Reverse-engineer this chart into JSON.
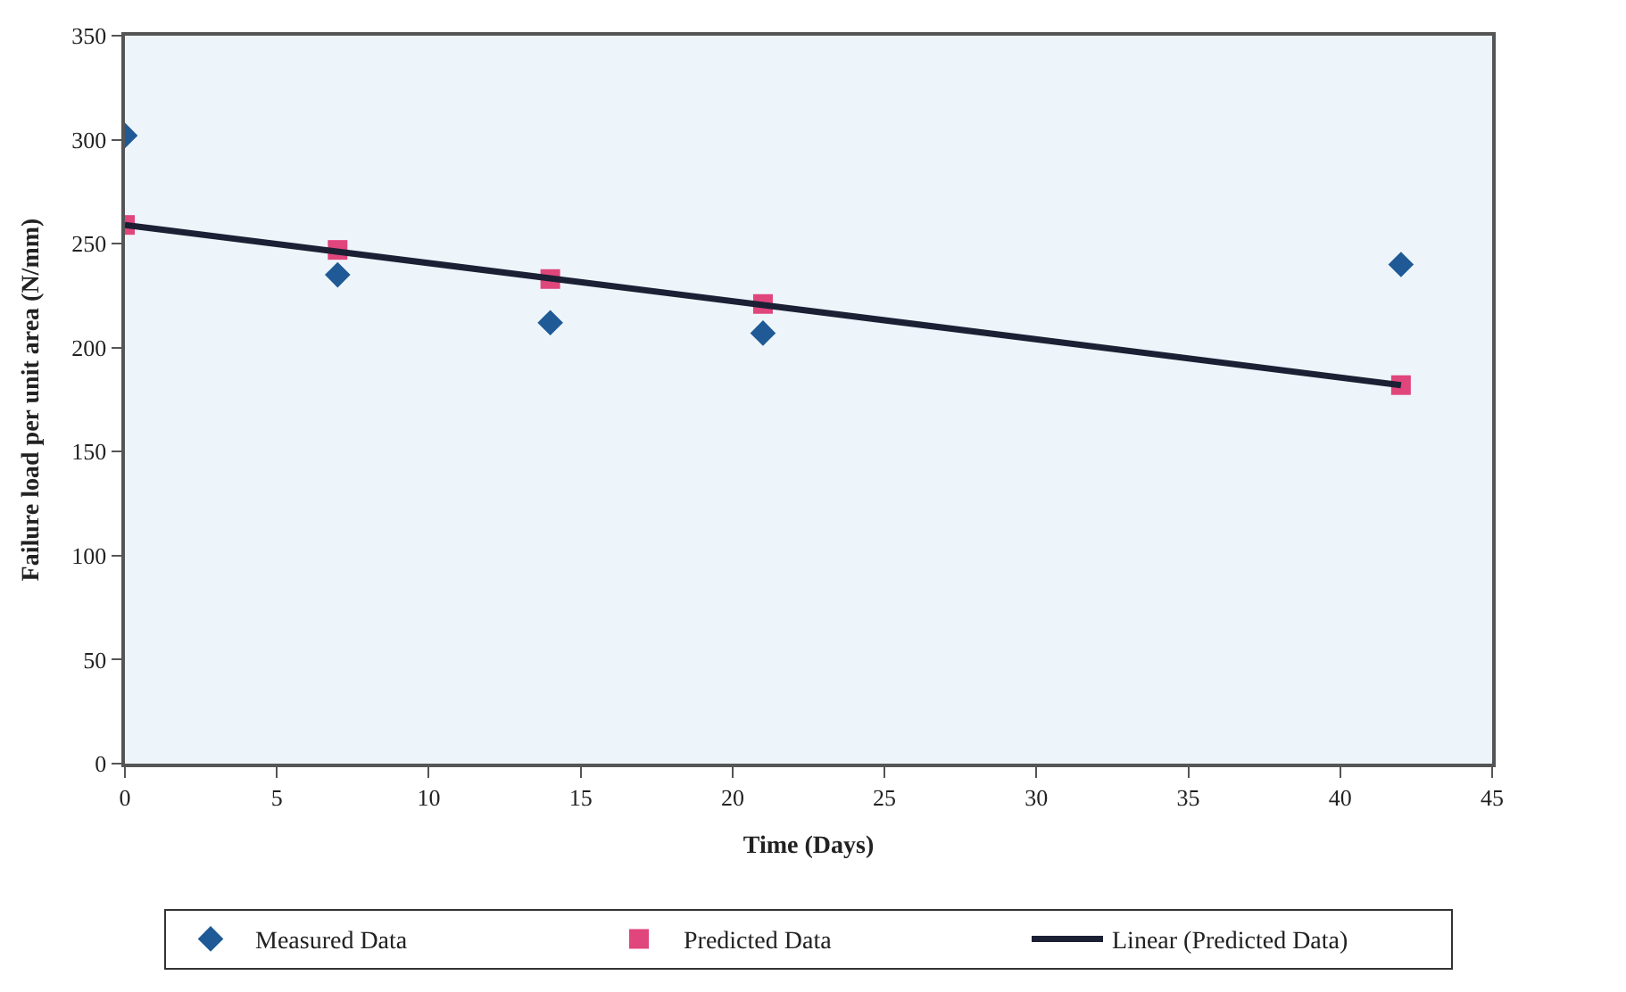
{
  "chart_data": {
    "type": "scatter",
    "xlabel": "Time (Days)",
    "ylabel": "Failure load per unit area (N/mm)",
    "x": [
      0,
      7,
      14,
      21,
      42
    ],
    "series": [
      {
        "name": "Measured Data",
        "marker": "diamond",
        "color": "#1f5a96",
        "values": [
          302,
          235,
          212,
          207,
          240
        ]
      },
      {
        "name": "Predicted Data",
        "marker": "square",
        "color": "#e0457c",
        "values": [
          259,
          247,
          233,
          221,
          182
        ]
      },
      {
        "name": "Linear (Predicted Data)",
        "type": "line",
        "marker": "none",
        "line_style": "solid",
        "color": "#1c2035",
        "x": [
          0,
          42
        ],
        "values": [
          259,
          182
        ]
      }
    ],
    "xlim": [
      0,
      45
    ],
    "xticks": [
      0,
      5,
      10,
      15,
      20,
      25,
      30,
      35,
      40,
      45
    ],
    "ylim": [
      0,
      350
    ],
    "yticks": [
      0,
      50,
      100,
      150,
      200,
      250,
      300,
      350
    ],
    "grid": false,
    "legend": "bottom"
  }
}
